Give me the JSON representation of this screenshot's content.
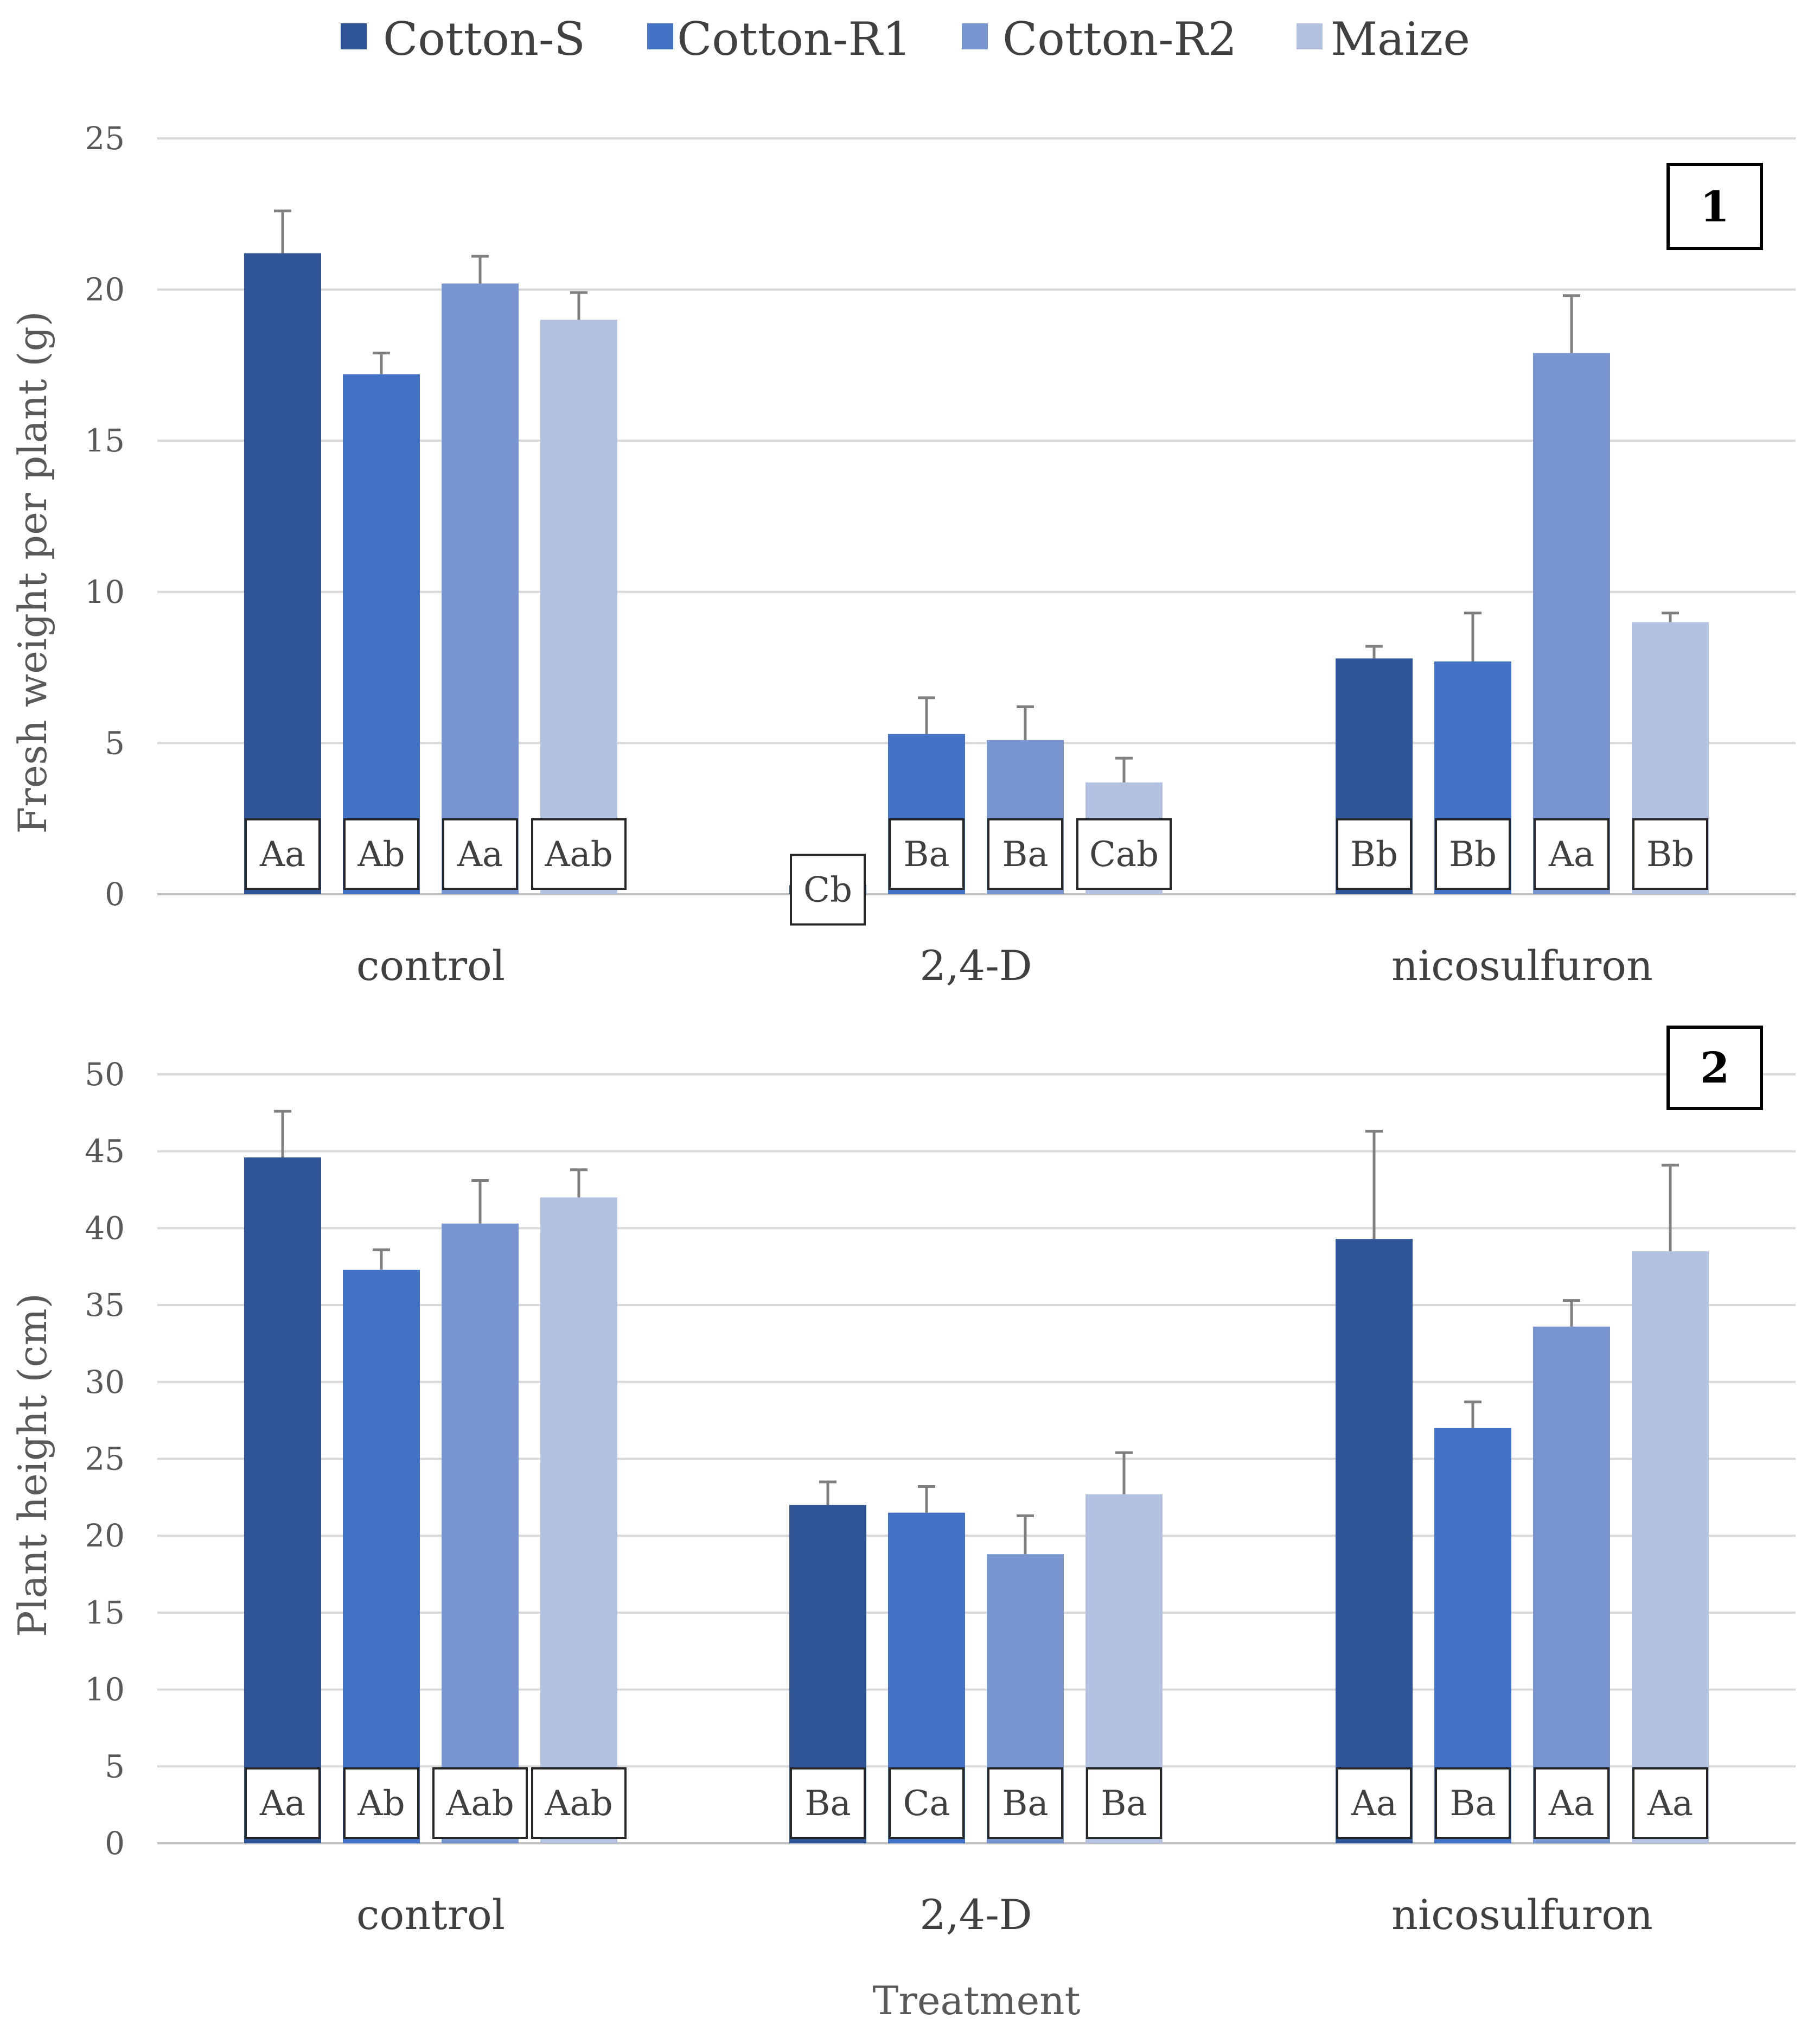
{
  "chart_data": [
    {
      "type": "bar",
      "panel_label": "1",
      "ylabel": "Fresh weight per plant (g)",
      "xlabel": "",
      "ylim": [
        0,
        25
      ],
      "yticks": [
        "0",
        "5",
        "10",
        "15",
        "20",
        "25"
      ],
      "categories": [
        "control",
        "2,4-D",
        "nicosulfuron"
      ],
      "series": [
        {
          "name": "Cotton-S",
          "color": "#2f5597",
          "values": [
            21.2,
            0.3,
            7.8
          ],
          "errors": [
            1.4,
            0.0,
            0.4
          ],
          "labels": [
            "Aa",
            "Cb",
            "Bb"
          ]
        },
        {
          "name": "Cotton-R1",
          "color": "#4472c4",
          "values": [
            17.2,
            5.3,
            7.7
          ],
          "errors": [
            0.7,
            1.2,
            1.6
          ],
          "labels": [
            "Ab",
            "Ba",
            "Bb"
          ]
        },
        {
          "name": "Cotton-R2",
          "color": "#7a96d1",
          "values": [
            20.2,
            5.1,
            17.9
          ],
          "errors": [
            0.9,
            1.1,
            1.9
          ],
          "labels": [
            "Aa",
            "Ba",
            "Aa"
          ]
        },
        {
          "name": "Maize",
          "color": "#b4c2e2",
          "values": [
            19.0,
            3.7,
            9.0
          ],
          "errors": [
            0.9,
            0.8,
            0.3
          ],
          "labels": [
            "Aab",
            "Cab",
            "Bb"
          ]
        }
      ]
    },
    {
      "type": "bar",
      "panel_label": "2",
      "ylabel": "Plant height (cm)",
      "xlabel": "Treatment",
      "ylim": [
        0,
        50
      ],
      "yticks": [
        "0",
        "5",
        "10",
        "15",
        "20",
        "25",
        "30",
        "35",
        "40",
        "45",
        "50"
      ],
      "categories": [
        "control",
        "2,4-D",
        "nicosulfuron"
      ],
      "series": [
        {
          "name": "Cotton-S",
          "color": "#2f5597",
          "values": [
            44.6,
            22.0,
            39.3
          ],
          "errors": [
            3.0,
            1.5,
            7.0
          ],
          "labels": [
            "Aa",
            "Ba",
            "Aa"
          ]
        },
        {
          "name": "Cotton-R1",
          "color": "#4472c4",
          "values": [
            37.3,
            21.5,
            27.0
          ],
          "errors": [
            1.3,
            1.7,
            1.7
          ],
          "labels": [
            "Ab",
            "Ca",
            "Ba"
          ]
        },
        {
          "name": "Cotton-R2",
          "color": "#7a96d1",
          "values": [
            40.3,
            18.8,
            33.6
          ],
          "errors": [
            2.8,
            2.5,
            1.7
          ],
          "labels": [
            "Aab",
            "Ba",
            "Aa"
          ]
        },
        {
          "name": "Maize",
          "color": "#b4c2e2",
          "values": [
            42.0,
            22.7,
            38.5
          ],
          "errors": [
            1.8,
            2.7,
            5.6
          ],
          "labels": [
            "Aab",
            "Ba",
            "Aa"
          ]
        }
      ]
    }
  ]
}
